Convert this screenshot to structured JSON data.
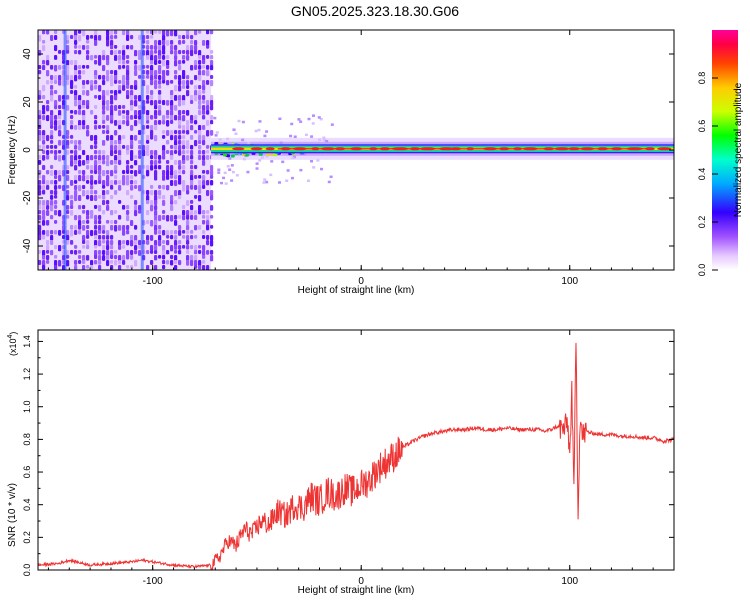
{
  "title": "GN05.2025.323.18.30.G06",
  "colorbar": {
    "label": "Normalized spectral amplitude",
    "ticks": [
      {
        "value": 0.0,
        "label": "0.0"
      },
      {
        "value": 0.2,
        "label": "0.2"
      },
      {
        "value": 0.4,
        "label": "0.4"
      },
      {
        "value": 0.6,
        "label": "0.6"
      },
      {
        "value": 0.8,
        "label": "0.8"
      }
    ],
    "range": [
      0,
      1
    ]
  },
  "chart_data": [
    {
      "type": "heatmap",
      "xlabel": "Height of straight line (km)",
      "ylabel": "Frequency (Hz)",
      "xlim": [
        -155,
        150
      ],
      "ylim": [
        -50,
        50
      ],
      "xticks": [
        {
          "value": -100,
          "label": "-100"
        },
        {
          "value": 0,
          "label": "0"
        },
        {
          "value": 100,
          "label": "100"
        }
      ],
      "yticks": [
        {
          "value": -40,
          "label": "-40"
        },
        {
          "value": -20,
          "label": "-20"
        },
        {
          "value": 0,
          "label": "0"
        },
        {
          "value": 20,
          "label": "20"
        },
        {
          "value": 40,
          "label": "40"
        }
      ],
      "regions": {
        "noise_x_range": [
          -155,
          -72
        ],
        "signal_x_range": [
          -72,
          150
        ],
        "signal_center_frequency": 0.5
      }
    },
    {
      "type": "line",
      "xlabel": "Height of straight line (km)",
      "ylabel": "SNR (10 * v/v)",
      "y_multiplier_label": "(x10",
      "y_multiplier_exp": "4",
      "y_multiplier_close": ")",
      "xlim": [
        -155,
        150
      ],
      "ylim": [
        0,
        1.47
      ],
      "xticks": [
        {
          "value": -100,
          "label": "-100"
        },
        {
          "value": 0,
          "label": "0"
        },
        {
          "value": 100,
          "label": "100"
        }
      ],
      "yticks": [
        {
          "value": 0.0,
          "label": "0.0"
        },
        {
          "value": 0.2,
          "label": "0.2"
        },
        {
          "value": 0.4,
          "label": "0.4"
        },
        {
          "value": 0.6,
          "label": "0.6"
        },
        {
          "value": 0.8,
          "label": "0.8"
        },
        {
          "value": 1.0,
          "label": "1.0"
        },
        {
          "value": 1.2,
          "label": "1.2"
        },
        {
          "value": 1.4,
          "label": "1.4"
        }
      ],
      "series": [
        {
          "color": "#ee3333",
          "x": [
            -155,
            -145,
            -140,
            -130,
            -120,
            -110,
            -105,
            -100,
            -90,
            -80,
            -72,
            -68,
            -64,
            -60,
            -56,
            -52,
            -48,
            -44,
            -40,
            -36,
            -32,
            -28,
            -24,
            -20,
            -16,
            -12,
            -8,
            -4,
            0,
            4,
            8,
            12,
            16,
            20,
            25,
            30,
            35,
            40,
            45,
            50,
            55,
            60,
            65,
            70,
            75,
            80,
            85,
            88,
            91,
            94,
            97,
            99,
            100,
            101,
            102,
            103,
            104,
            105,
            106,
            108,
            110,
            115,
            120,
            125,
            130,
            135,
            140,
            145,
            150
          ],
          "y": [
            0.03,
            0.04,
            0.06,
            0.03,
            0.04,
            0.05,
            0.06,
            0.05,
            0.03,
            0.02,
            0.03,
            0.08,
            0.18,
            0.15,
            0.25,
            0.22,
            0.3,
            0.28,
            0.36,
            0.33,
            0.4,
            0.38,
            0.45,
            0.42,
            0.48,
            0.45,
            0.5,
            0.48,
            0.52,
            0.55,
            0.62,
            0.66,
            0.7,
            0.75,
            0.79,
            0.82,
            0.84,
            0.85,
            0.86,
            0.86,
            0.87,
            0.86,
            0.86,
            0.87,
            0.86,
            0.86,
            0.86,
            0.85,
            0.86,
            0.88,
            0.86,
            0.9,
            0.7,
            1.1,
            0.45,
            1.45,
            0.35,
            0.95,
            0.82,
            0.85,
            0.84,
            0.83,
            0.83,
            0.82,
            0.82,
            0.81,
            0.81,
            0.79,
            0.8
          ]
        }
      ]
    }
  ]
}
